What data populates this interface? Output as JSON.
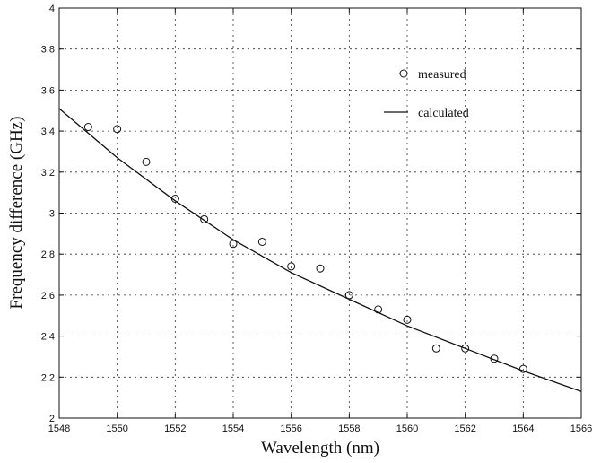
{
  "chart_data": {
    "type": "scatter",
    "title": "",
    "xlabel": "Wavelength (nm)",
    "ylabel": "Frequency difference (GHz)",
    "xlim": [
      1548,
      1566
    ],
    "ylim": [
      2,
      4
    ],
    "xticks": [
      1548,
      1550,
      1552,
      1554,
      1556,
      1558,
      1560,
      1562,
      1564,
      1566
    ],
    "yticks": [
      2,
      2.2,
      2.4,
      2.6,
      2.8,
      3,
      3.2,
      3.4,
      3.6,
      3.8,
      4
    ],
    "ytick_labels": [
      "2",
      "2.2",
      "2.4",
      "2.6",
      "2.8",
      "3",
      "3.2",
      "3.4",
      "3.6",
      "3.8",
      "4"
    ],
    "grid": true,
    "legend_position": "top-right",
    "series": [
      {
        "name": "measured",
        "style": "open-circle",
        "x": [
          1549,
          1550,
          1551,
          1552,
          1553,
          1554,
          1555,
          1556,
          1557,
          1558,
          1559,
          1560,
          1561,
          1562,
          1563,
          1564
        ],
        "y": [
          3.42,
          3.41,
          3.25,
          3.07,
          2.97,
          2.85,
          2.86,
          2.74,
          2.73,
          2.6,
          2.53,
          2.48,
          2.34,
          2.34,
          2.29,
          2.24
        ]
      },
      {
        "name": "calculated",
        "style": "line",
        "x": [
          1548,
          1550,
          1552,
          1554,
          1556,
          1558,
          1560,
          1562,
          1564,
          1566
        ],
        "y": [
          3.51,
          3.27,
          3.06,
          2.87,
          2.71,
          2.58,
          2.45,
          2.34,
          2.23,
          2.13
        ]
      }
    ]
  }
}
